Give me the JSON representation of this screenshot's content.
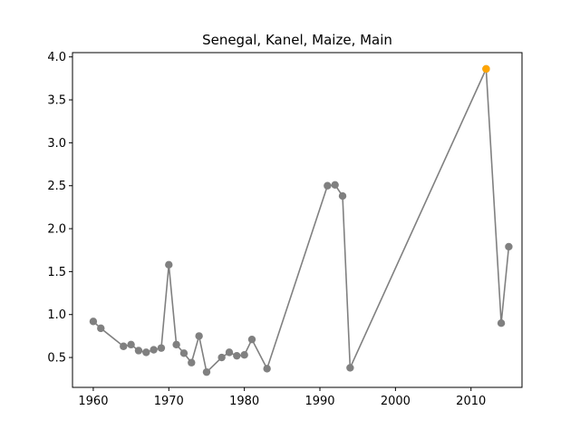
{
  "chart_data": {
    "type": "line",
    "title": "Senegal, Kanel, Maize, Main",
    "xlabel": "",
    "ylabel": "",
    "xlim": [
      1957.25,
      2016.75
    ],
    "ylim": [
      0.152,
      4.05
    ],
    "xticks": [
      1960,
      1970,
      1980,
      1990,
      2000,
      2010
    ],
    "xtick_labels": [
      "1960",
      "1970",
      "1980",
      "1990",
      "2000",
      "2010"
    ],
    "yticks": [
      0.5,
      1.0,
      1.5,
      2.0,
      2.5,
      3.0,
      3.5,
      4.0
    ],
    "ytick_labels": [
      "0.5",
      "1.0",
      "1.5",
      "2.0",
      "2.5",
      "3.0",
      "3.5",
      "4.0"
    ],
    "grid": false,
    "line_color": "#808080",
    "marker_color": "#808080",
    "highlight_color": "#ffa500",
    "series": [
      {
        "x": [
          1960,
          1961,
          1964,
          1965,
          1966,
          1967,
          1968,
          1969,
          1970,
          1971,
          1972,
          1973,
          1974,
          1975,
          1977,
          1978,
          1979,
          1980,
          1981,
          1983,
          1991,
          1992,
          1993,
          1994,
          2012,
          2014,
          2015
        ],
        "y": [
          0.92,
          0.84,
          0.63,
          0.65,
          0.58,
          0.56,
          0.59,
          0.61,
          1.58,
          0.65,
          0.55,
          0.44,
          0.75,
          0.33,
          0.5,
          0.56,
          0.52,
          0.53,
          0.71,
          0.37,
          2.5,
          2.51,
          2.38,
          0.38,
          3.86,
          0.9,
          1.79
        ]
      }
    ],
    "highlight": {
      "x": 2012,
      "y": 3.86
    }
  }
}
